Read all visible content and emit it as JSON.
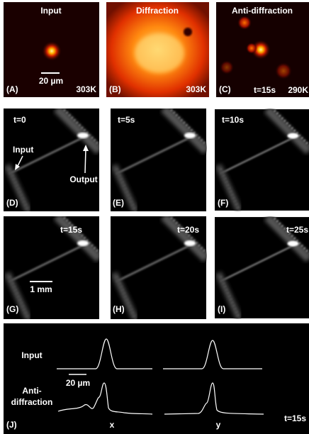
{
  "panels": [
    {
      "label": "(A)",
      "title": "Input",
      "scale_bar": "20 µm",
      "temperature": "303K"
    },
    {
      "label": "(B)",
      "title": "Diffraction",
      "temperature": "303K"
    },
    {
      "label": "(C)",
      "title": "Anti-diffraction",
      "time": "t=15s",
      "temperature": "290K"
    },
    {
      "label": "(D)",
      "time": "t=0",
      "input_label": "Input",
      "output_label": "Output"
    },
    {
      "label": "(E)",
      "time": "t=5s"
    },
    {
      "label": "(F)",
      "time": "t=10s"
    },
    {
      "label": "(G)",
      "time": "t=15s",
      "scale_bar": "1 mm"
    },
    {
      "label": "(H)",
      "time": "t=20s"
    },
    {
      "label": "(I)",
      "time": "t=25s"
    }
  ],
  "profile_panel": {
    "label": "(J)",
    "input_label": "Input",
    "anti_label": [
      "Anti-",
      "diffraction"
    ],
    "scale_bar": "20 µm",
    "x_label": "x",
    "y_label": "y",
    "time": "t=15s"
  }
}
